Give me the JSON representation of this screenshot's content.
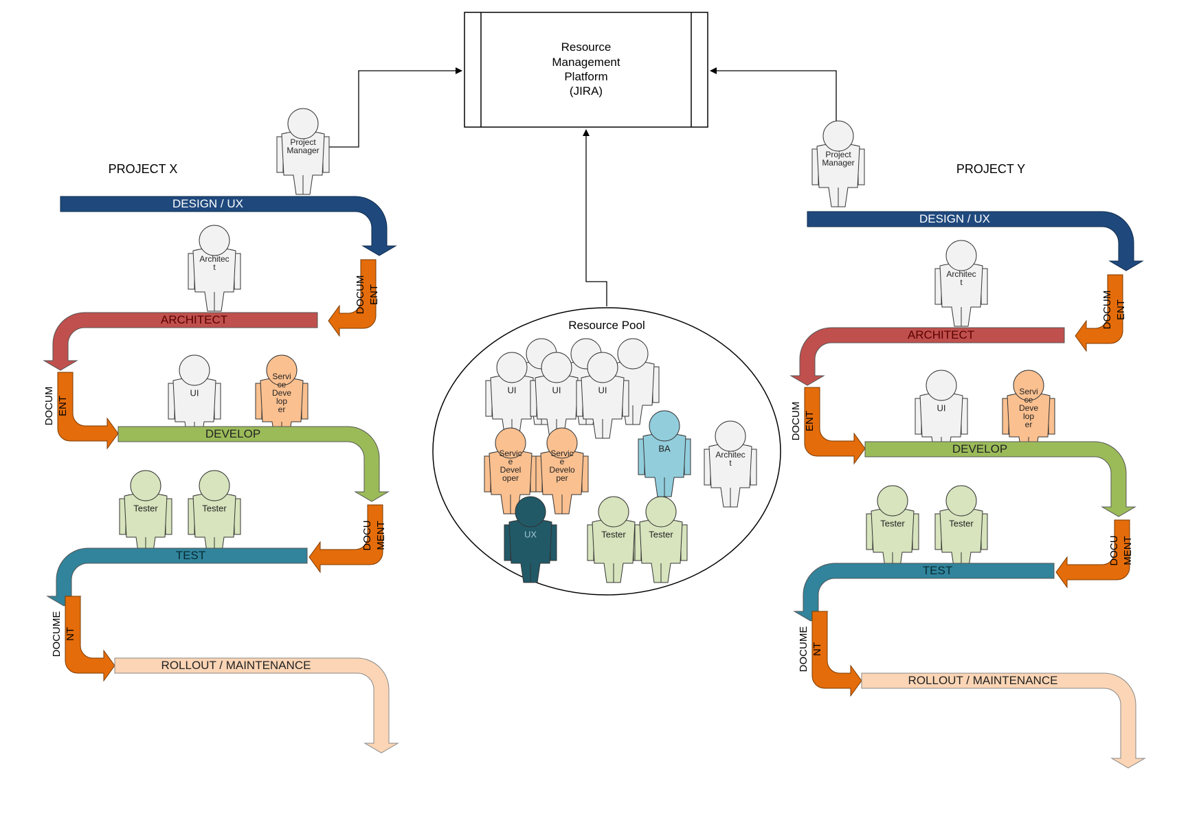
{
  "platform": {
    "lines": [
      "Resource",
      "Management",
      "Platform",
      "(JIRA)"
    ]
  },
  "pool": {
    "title": "Resource Pool"
  },
  "projects": {
    "x": {
      "title": "PROJECT X",
      "manager": "Project Manager",
      "design": "DESIGN / UX",
      "architect_stage": "ARCHITECT",
      "develop": "DEVELOP",
      "test": "TEST",
      "rollout": "ROLLOUT / MAINTENANCE",
      "doc1": [
        "DOCUM",
        "ENT"
      ],
      "doc2": [
        "DOCUM",
        "ENT"
      ],
      "doc3": [
        "DOCU",
        "MENT"
      ],
      "doc4": [
        "DOCUME",
        "NT"
      ],
      "architect": "Architect",
      "ui": "UI",
      "service_dev": "Service Developer",
      "tester": "Tester"
    },
    "y": {
      "title": "PROJECT Y",
      "manager": "Project Manager",
      "design": "DESIGN / UX",
      "architect_stage": "ARCHITECT",
      "develop": "DEVELOP",
      "test": "TEST",
      "rollout": "ROLLOUT / MAINTENANCE",
      "doc1": [
        "DOCUM",
        "ENT"
      ],
      "doc2": [
        "DOCUM",
        "ENT"
      ],
      "doc3": [
        "DOCU",
        "MENT"
      ],
      "doc4": [
        "DOCUME",
        "NT"
      ],
      "architect": "Architect",
      "ui": "UI",
      "service_dev": "Service Developer",
      "tester": "Tester"
    }
  },
  "pool_people": {
    "ui": "UI",
    "service_dev": "Service Developer",
    "ba": "BA",
    "architect": "Architect",
    "ux": "UX",
    "tester": "Tester"
  },
  "colors": {
    "design": "#1f497d",
    "architect": "#c0504d",
    "develop": "#9bbb59",
    "test": "#31849b",
    "rollout": "#fbd5b5",
    "document": "#e46c0a",
    "person_white": "#f2f2f2",
    "person_peach": "#fac090",
    "person_green": "#d7e4bd",
    "person_blue": "#92cddc",
    "person_teal": "#215967"
  }
}
